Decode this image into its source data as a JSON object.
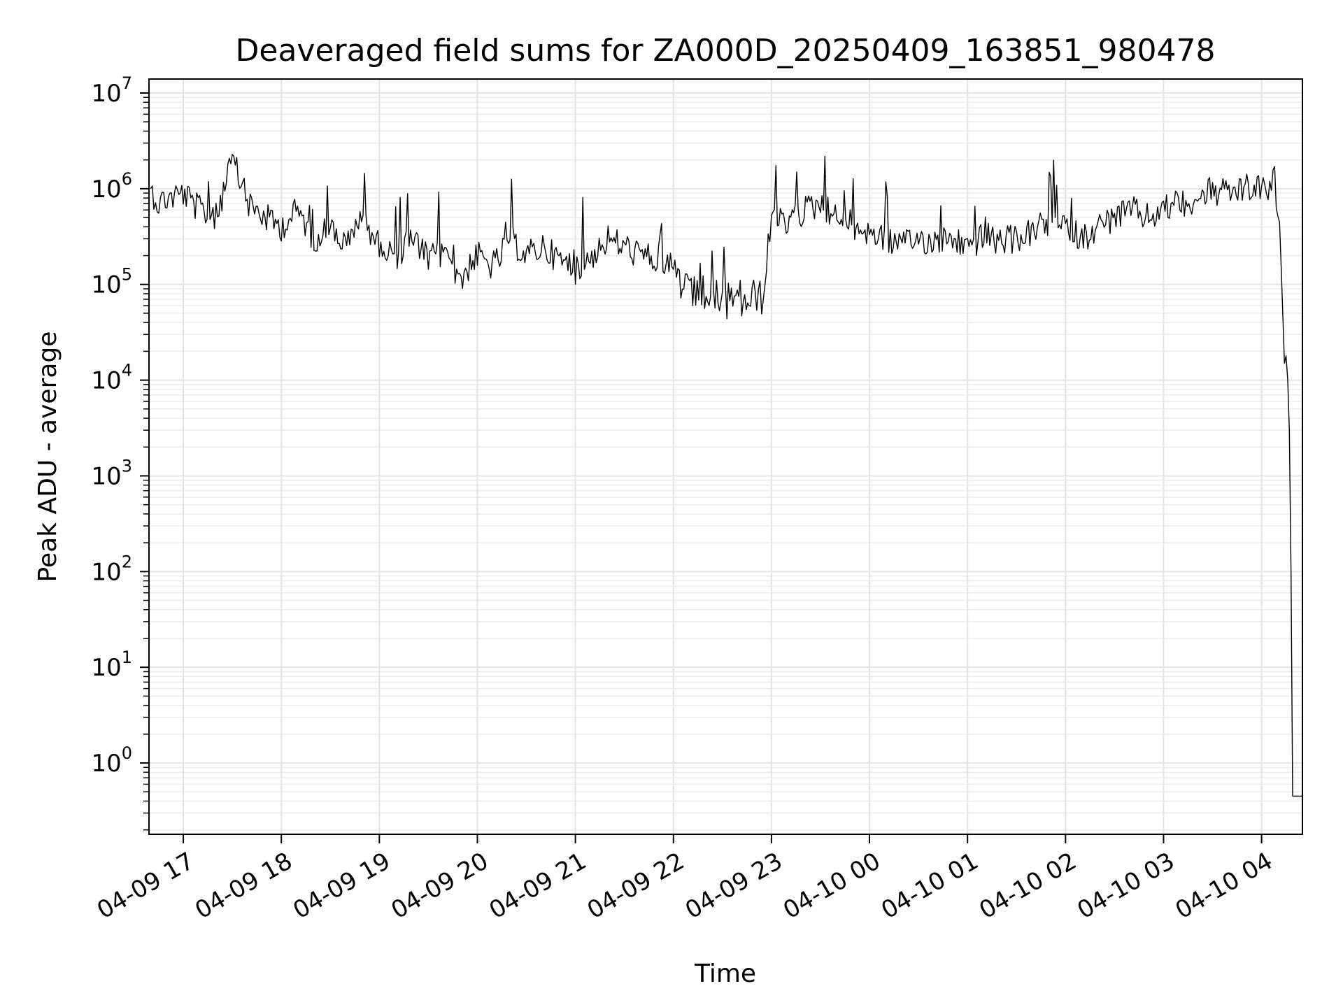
{
  "chart_data": {
    "type": "line",
    "title": "Deaveraged field sums for ZA000D_20250409_163851_980478",
    "xlabel": "Time",
    "ylabel": "Peak ADU - average",
    "yscale": "log",
    "ylim": [
      0.18,
      14000000
    ],
    "xlim": [
      "2025-04-09 16:39",
      "2025-04-10 04:25"
    ],
    "grid": true,
    "line_color": "#000000",
    "x_ticks": [
      {
        "label": "04-09 17",
        "t": "2025-04-09 17:00"
      },
      {
        "label": "04-09 18",
        "t": "2025-04-09 18:00"
      },
      {
        "label": "04-09 19",
        "t": "2025-04-09 19:00"
      },
      {
        "label": "04-09 20",
        "t": "2025-04-09 20:00"
      },
      {
        "label": "04-09 21",
        "t": "2025-04-09 21:00"
      },
      {
        "label": "04-09 22",
        "t": "2025-04-09 22:00"
      },
      {
        "label": "04-09 23",
        "t": "2025-04-09 23:00"
      },
      {
        "label": "04-10 00",
        "t": "2025-04-10 00:00"
      },
      {
        "label": "04-10 01",
        "t": "2025-04-10 01:00"
      },
      {
        "label": "04-10 02",
        "t": "2025-04-10 02:00"
      },
      {
        "label": "04-10 03",
        "t": "2025-04-10 03:00"
      },
      {
        "label": "04-10 04",
        "t": "2025-04-10 04:00"
      }
    ],
    "y_ticks": [
      {
        "base": "10",
        "exp": "0",
        "value": 1
      },
      {
        "base": "10",
        "exp": "1",
        "value": 10
      },
      {
        "base": "10",
        "exp": "2",
        "value": 100
      },
      {
        "base": "10",
        "exp": "3",
        "value": 1000
      },
      {
        "base": "10",
        "exp": "4",
        "value": 10000
      },
      {
        "base": "10",
        "exp": "5",
        "value": 100000
      },
      {
        "base": "10",
        "exp": "6",
        "value": 1000000
      },
      {
        "base": "10",
        "exp": "7",
        "value": 10000000
      }
    ],
    "series": [
      {
        "x": [
          "2025-04-09 16:40",
          "2025-04-09 16:45",
          "2025-04-09 16:50",
          "2025-04-09 17:00",
          "2025-04-09 17:10",
          "2025-04-09 17:20",
          "2025-04-09 17:30",
          "2025-04-09 17:40",
          "2025-04-09 17:50",
          "2025-04-09 18:00",
          "2025-04-09 18:10",
          "2025-04-09 18:20",
          "2025-04-09 18:30",
          "2025-04-09 18:40",
          "2025-04-09 18:50",
          "2025-04-09 19:00",
          "2025-04-09 19:10",
          "2025-04-09 19:20",
          "2025-04-09 19:30",
          "2025-04-09 19:40",
          "2025-04-09 19:50",
          "2025-04-09 20:00",
          "2025-04-09 20:10",
          "2025-04-09 20:20",
          "2025-04-09 20:30",
          "2025-04-09 20:40",
          "2025-04-09 20:50",
          "2025-04-09 21:00",
          "2025-04-09 21:10",
          "2025-04-09 21:20",
          "2025-04-09 21:30",
          "2025-04-09 21:40",
          "2025-04-09 21:50",
          "2025-04-09 22:00",
          "2025-04-09 22:10",
          "2025-04-09 22:20",
          "2025-04-09 22:30",
          "2025-04-09 22:40",
          "2025-04-09 22:50",
          "2025-04-09 22:55",
          "2025-04-09 23:00",
          "2025-04-09 23:10",
          "2025-04-09 23:20",
          "2025-04-09 23:30",
          "2025-04-09 23:40",
          "2025-04-09 23:50",
          "2025-04-10 00:00",
          "2025-04-10 00:10",
          "2025-04-10 00:20",
          "2025-04-10 00:30",
          "2025-04-10 00:40",
          "2025-04-10 00:50",
          "2025-04-10 01:00",
          "2025-04-10 01:10",
          "2025-04-10 01:20",
          "2025-04-10 01:30",
          "2025-04-10 01:40",
          "2025-04-10 01:50",
          "2025-04-10 02:00",
          "2025-04-10 02:10",
          "2025-04-10 02:20",
          "2025-04-10 02:30",
          "2025-04-10 02:40",
          "2025-04-10 02:50",
          "2025-04-10 03:00",
          "2025-04-10 03:10",
          "2025-04-10 03:20",
          "2025-04-10 03:30",
          "2025-04-10 03:40",
          "2025-04-10 03:50",
          "2025-04-10 04:00",
          "2025-04-10 04:05",
          "2025-04-10 04:10",
          "2025-04-10 04:12",
          "2025-04-10 04:14",
          "2025-04-10 04:15",
          "2025-04-10 04:16",
          "2025-04-10 04:17",
          "2025-04-10 04:18",
          "2025-04-10 04:19",
          "2025-04-10 04:20",
          "2025-04-10 04:25"
        ],
        "y": [
          1000000,
          700000,
          800000,
          900000,
          600000,
          500000,
          2000000,
          700000,
          500000,
          400000,
          600000,
          300000,
          400000,
          250000,
          500000,
          250000,
          200000,
          300000,
          180000,
          220000,
          120000,
          200000,
          150000,
          300000,
          200000,
          250000,
          180000,
          150000,
          200000,
          300000,
          250000,
          200000,
          180000,
          150000,
          70000,
          80000,
          65000,
          70000,
          70000,
          80000,
          500000,
          400000,
          600000,
          700000,
          500000,
          400000,
          350000,
          300000,
          250000,
          300000,
          280000,
          300000,
          250000,
          300000,
          280000,
          300000,
          350000,
          400000,
          400000,
          300000,
          400000,
          500000,
          600000,
          500000,
          600000,
          700000,
          800000,
          900000,
          900000,
          1000000,
          1000000,
          1000000,
          500000,
          200000,
          15000,
          18000,
          10000,
          3000,
          100,
          0.45,
          0.45,
          0.45
        ]
      }
    ]
  }
}
